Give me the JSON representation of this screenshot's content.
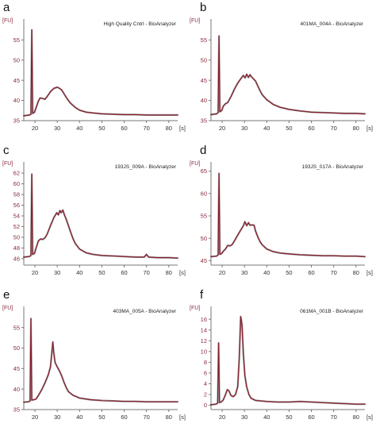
{
  "chart_data": [
    {
      "letter": "a",
      "title": "High Quality Cntrl - BioAnalyzer",
      "type": "line",
      "y_unit": "[FU]",
      "x_unit": "[s]",
      "xlim": [
        15,
        84
      ],
      "ylim": [
        35,
        59
      ],
      "xticks": [
        20,
        30,
        40,
        50,
        60,
        70,
        80
      ],
      "yticks": [
        35,
        40,
        45,
        50,
        55
      ],
      "points": [
        [
          15,
          36.2
        ],
        [
          17.5,
          36.4
        ],
        [
          18.2,
          36.6
        ],
        [
          18.6,
          57.5
        ],
        [
          19.0,
          36.8
        ],
        [
          19.8,
          37.1
        ],
        [
          20.5,
          38.2
        ],
        [
          21.5,
          39.8
        ],
        [
          22.3,
          40.6
        ],
        [
          23.5,
          40.5
        ],
        [
          24.5,
          40.3
        ],
        [
          25.5,
          41.0
        ],
        [
          27,
          42.2
        ],
        [
          28.5,
          43.0
        ],
        [
          30,
          43.3
        ],
        [
          31,
          43.0
        ],
        [
          32,
          42.6
        ],
        [
          33,
          41.7
        ],
        [
          34,
          40.8
        ],
        [
          35,
          40.0
        ],
        [
          36,
          39.3
        ],
        [
          38,
          38.3
        ],
        [
          40,
          37.6
        ],
        [
          43,
          37.1
        ],
        [
          46,
          36.9
        ],
        [
          50,
          36.7
        ],
        [
          55,
          36.6
        ],
        [
          60,
          36.5
        ],
        [
          65,
          36.5
        ],
        [
          70,
          36.4
        ],
        [
          75,
          36.4
        ],
        [
          80,
          36.4
        ],
        [
          84,
          36.4
        ]
      ]
    },
    {
      "letter": "b",
      "title": "401MA_004A - BioAnalyzer",
      "type": "line",
      "y_unit": "[FU]",
      "x_unit": "[s]",
      "xlim": [
        15,
        84
      ],
      "ylim": [
        35,
        59
      ],
      "xticks": [
        20,
        30,
        40,
        50,
        60,
        70,
        80
      ],
      "yticks": [
        35,
        40,
        45,
        50,
        55
      ],
      "points": [
        [
          15,
          36.5
        ],
        [
          17.5,
          36.7
        ],
        [
          18.2,
          37.0
        ],
        [
          18.6,
          56.0
        ],
        [
          19.0,
          37.2
        ],
        [
          19.8,
          37.5
        ],
        [
          20.5,
          38.6
        ],
        [
          21.5,
          39.2
        ],
        [
          22.5,
          39.5
        ],
        [
          24,
          41.0
        ],
        [
          25.5,
          42.8
        ],
        [
          27,
          44.3
        ],
        [
          28.5,
          45.5
        ],
        [
          29.5,
          46.2
        ],
        [
          30.3,
          45.6
        ],
        [
          31,
          46.5
        ],
        [
          31.8,
          45.7
        ],
        [
          32.5,
          46.4
        ],
        [
          33.2,
          45.8
        ],
        [
          34,
          45.4
        ],
        [
          35,
          44.8
        ],
        [
          36,
          43.6
        ],
        [
          37,
          42.4
        ],
        [
          38,
          41.4
        ],
        [
          40,
          40.2
        ],
        [
          43,
          39.0
        ],
        [
          46,
          38.3
        ],
        [
          50,
          37.8
        ],
        [
          55,
          37.4
        ],
        [
          60,
          37.1
        ],
        [
          65,
          37.0
        ],
        [
          70,
          36.9
        ],
        [
          75,
          36.8
        ],
        [
          80,
          36.8
        ],
        [
          84,
          36.7
        ]
      ]
    },
    {
      "letter": "c",
      "title": "193JS_009A - BioAnalyzer",
      "type": "line",
      "y_unit": "[FU]",
      "x_unit": "[s]",
      "xlim": [
        15,
        84
      ],
      "ylim": [
        44.8,
        63.2
      ],
      "xticks": [
        20,
        30,
        40,
        50,
        60,
        70,
        80
      ],
      "yticks": [
        46,
        48,
        50,
        52,
        54,
        56,
        58,
        60,
        62
      ],
      "points": [
        [
          15,
          46.3
        ],
        [
          17.5,
          46.4
        ],
        [
          18.2,
          46.6
        ],
        [
          18.6,
          61.8
        ],
        [
          19.0,
          46.8
        ],
        [
          19.8,
          47.0
        ],
        [
          20.5,
          48.0
        ],
        [
          21.5,
          49.3
        ],
        [
          22.5,
          49.7
        ],
        [
          23.5,
          49.6
        ],
        [
          24.5,
          49.9
        ],
        [
          25.5,
          50.6
        ],
        [
          27,
          52.2
        ],
        [
          28.5,
          53.7
        ],
        [
          29.8,
          54.6
        ],
        [
          30.5,
          54.2
        ],
        [
          31.2,
          55.0
        ],
        [
          31.8,
          54.6
        ],
        [
          32.5,
          55.1
        ],
        [
          33.2,
          54.2
        ],
        [
          34,
          53.4
        ],
        [
          35,
          52.2
        ],
        [
          36,
          51.0
        ],
        [
          37,
          49.8
        ],
        [
          38,
          48.9
        ],
        [
          40,
          47.8
        ],
        [
          43,
          47.1
        ],
        [
          46,
          46.8
        ],
        [
          50,
          46.6
        ],
        [
          55,
          46.5
        ],
        [
          60,
          46.4
        ],
        [
          65,
          46.3
        ],
        [
          69,
          46.3
        ],
        [
          70,
          46.8
        ],
        [
          71,
          46.3
        ],
        [
          75,
          46.2
        ],
        [
          80,
          46.2
        ],
        [
          84,
          46.1
        ]
      ]
    },
    {
      "letter": "d",
      "title": "193JS_017A - BioAnalyzer",
      "type": "line",
      "y_unit": "[FU]",
      "x_unit": "[s]",
      "xlim": [
        15,
        84
      ],
      "ylim": [
        44,
        66
      ],
      "xticks": [
        20,
        30,
        40,
        50,
        60,
        70,
        80
      ],
      "yticks": [
        45,
        50,
        55,
        60,
        65
      ],
      "points": [
        [
          15,
          45.9
        ],
        [
          17.5,
          46.0
        ],
        [
          18.2,
          46.3
        ],
        [
          18.6,
          64.5
        ],
        [
          19.0,
          46.4
        ],
        [
          19.8,
          46.6
        ],
        [
          20.5,
          47.1
        ],
        [
          21.5,
          47.6
        ],
        [
          22.5,
          48.4
        ],
        [
          23.5,
          48.3
        ],
        [
          24.5,
          48.6
        ],
        [
          25.5,
          49.4
        ],
        [
          27,
          50.7
        ],
        [
          28.5,
          52.0
        ],
        [
          29.5,
          52.8
        ],
        [
          30.2,
          53.7
        ],
        [
          31,
          52.8
        ],
        [
          31.8,
          53.5
        ],
        [
          32.5,
          52.9
        ],
        [
          33.5,
          53.0
        ],
        [
          34.3,
          52.9
        ],
        [
          35,
          51.6
        ],
        [
          36,
          50.3
        ],
        [
          37,
          49.2
        ],
        [
          38,
          48.5
        ],
        [
          40,
          47.6
        ],
        [
          43,
          47.0
        ],
        [
          46,
          46.7
        ],
        [
          50,
          46.5
        ],
        [
          55,
          46.3
        ],
        [
          60,
          46.2
        ],
        [
          65,
          46.1
        ],
        [
          70,
          46.1
        ],
        [
          75,
          46.0
        ],
        [
          80,
          46.0
        ],
        [
          84,
          45.9
        ]
      ]
    },
    {
      "letter": "e",
      "title": "403MA_005A - BioAnalyzer",
      "type": "line",
      "y_unit": "[FU]",
      "x_unit": "[s]",
      "xlim": [
        15,
        84
      ],
      "ylim": [
        35,
        59
      ],
      "xticks": [
        20,
        30,
        40,
        50,
        60,
        70,
        80
      ],
      "yticks": [
        35,
        40,
        45,
        50,
        55
      ],
      "points": [
        [
          15,
          36.8
        ],
        [
          17.2,
          36.9
        ],
        [
          17.8,
          37.1
        ],
        [
          18.2,
          57.2
        ],
        [
          18.6,
          37.3
        ],
        [
          19.5,
          37.4
        ],
        [
          20.5,
          37.6
        ],
        [
          21.5,
          38.4
        ],
        [
          23,
          39.8
        ],
        [
          24.5,
          41.5
        ],
        [
          26,
          43.5
        ],
        [
          27,
          45.5
        ],
        [
          27.6,
          49.0
        ],
        [
          28.0,
          51.5
        ],
        [
          28.4,
          49.0
        ],
        [
          29,
          46.5
        ],
        [
          30,
          45.4
        ],
        [
          31,
          44.4
        ],
        [
          32,
          43.2
        ],
        [
          33,
          41.7
        ],
        [
          34,
          40.4
        ],
        [
          35,
          39.4
        ],
        [
          37,
          38.5
        ],
        [
          40,
          37.8
        ],
        [
          45,
          37.4
        ],
        [
          50,
          37.2
        ],
        [
          55,
          37.1
        ],
        [
          60,
          37.0
        ],
        [
          65,
          37.0
        ],
        [
          70,
          36.9
        ],
        [
          75,
          36.9
        ],
        [
          80,
          36.9
        ],
        [
          84,
          36.9
        ]
      ]
    },
    {
      "letter": "f",
      "title": "061MA_001B - BioAnalyzer",
      "type": "line",
      "y_unit": "[FU]",
      "x_unit": "[s]",
      "xlim": [
        15,
        84
      ],
      "ylim": [
        -0.8,
        17.5
      ],
      "xticks": [
        20,
        30,
        40,
        50,
        60,
        70,
        80
      ],
      "yticks": [
        0,
        2,
        4,
        6,
        8,
        10,
        12,
        14,
        16
      ],
      "points": [
        [
          15,
          0.1
        ],
        [
          17.2,
          0.2
        ],
        [
          18.0,
          0.4
        ],
        [
          18.4,
          11.6
        ],
        [
          18.8,
          0.5
        ],
        [
          19.5,
          0.6
        ],
        [
          20.5,
          1.0
        ],
        [
          21.5,
          2.0
        ],
        [
          22.3,
          2.9
        ],
        [
          23.0,
          2.7
        ],
        [
          24.0,
          1.8
        ],
        [
          25.0,
          1.6
        ],
        [
          26.0,
          2.0
        ],
        [
          27.0,
          3.5
        ],
        [
          27.7,
          9.0
        ],
        [
          28.3,
          16.5
        ],
        [
          28.9,
          15.0
        ],
        [
          29.5,
          9.5
        ],
        [
          30.2,
          5.5
        ],
        [
          31,
          3.4
        ],
        [
          32,
          2.0
        ],
        [
          33,
          1.3
        ],
        [
          35,
          0.9
        ],
        [
          40,
          0.7
        ],
        [
          45,
          0.6
        ],
        [
          50,
          0.6
        ],
        [
          55,
          0.7
        ],
        [
          60,
          0.6
        ],
        [
          65,
          0.5
        ],
        [
          70,
          0.4
        ],
        [
          75,
          0.3
        ],
        [
          80,
          0.2
        ],
        [
          84,
          0.2
        ]
      ]
    }
  ]
}
